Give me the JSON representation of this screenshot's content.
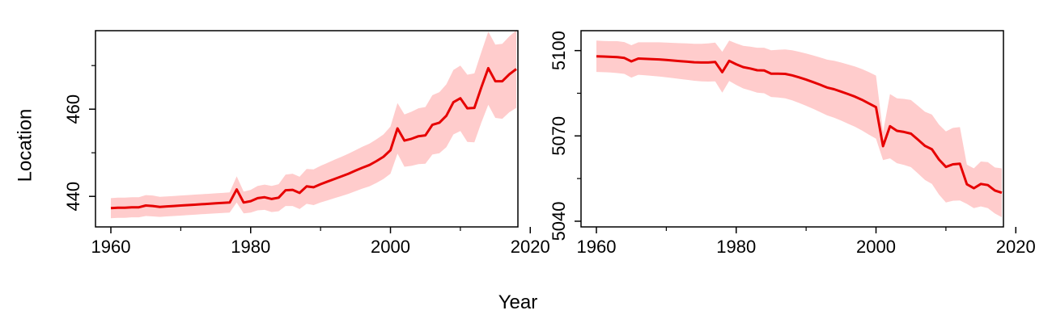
{
  "figure": {
    "ylabel": "Location",
    "xlabel": "Year",
    "colors": {
      "line": "#e60000",
      "band": "#ffcccc",
      "axis": "#000000"
    }
  },
  "chart_data": [
    {
      "type": "line",
      "xlim": [
        1960,
        2018
      ],
      "ylim": [
        433,
        478
      ],
      "xticks": [
        1960,
        1980,
        2000,
        2020
      ],
      "yticks": [
        440,
        460
      ],
      "xtick_labels": [
        "1960",
        "1980",
        "2000",
        "2020"
      ],
      "ytick_labels": [
        "440",
        "460"
      ],
      "minor_yticks": [
        450,
        470
      ],
      "series": [
        {
          "x": [
            1960,
            1961,
            1962,
            1963,
            1964,
            1965,
            1966,
            1967,
            1968,
            1969,
            1970,
            1971,
            1972,
            1973,
            1974,
            1975,
            1976,
            1977,
            1978,
            1979,
            1980,
            1981,
            1982,
            1983,
            1984,
            1985,
            1986,
            1987,
            1988,
            1989,
            1990,
            1991,
            1992,
            1993,
            1994,
            1995,
            1996,
            1997,
            1998,
            1999,
            2000,
            2001,
            2002,
            2003,
            2004,
            2005,
            2006,
            2007,
            2008,
            2009,
            2010,
            2011,
            2012,
            2013,
            2014,
            2015,
            2016,
            2017,
            2018
          ],
          "y": [
            437.3,
            437.4,
            437.4,
            437.5,
            437.5,
            437.9,
            437.8,
            437.6,
            437.7,
            437.8,
            437.9,
            438.0,
            438.1,
            438.2,
            438.3,
            438.4,
            438.5,
            438.6,
            441.6,
            438.6,
            438.9,
            439.6,
            439.8,
            439.4,
            439.7,
            441.4,
            441.5,
            440.8,
            442.3,
            442.1,
            442.8,
            443.4,
            444.0,
            444.6,
            445.2,
            445.9,
            446.6,
            447.2,
            448.1,
            449.1,
            450.6,
            455.6,
            452.8,
            453.2,
            453.8,
            454.0,
            456.4,
            456.9,
            458.5,
            461.6,
            462.5,
            460.2,
            460.3,
            465.0,
            469.4,
            466.4,
            466.4,
            468.0,
            469.2
          ],
          "lower": [
            435.0,
            435.1,
            435.1,
            435.2,
            435.2,
            435.5,
            435.4,
            435.3,
            435.4,
            435.5,
            435.6,
            435.7,
            435.8,
            435.9,
            436.0,
            436.1,
            436.2,
            436.3,
            438.6,
            436.1,
            436.3,
            436.8,
            436.9,
            436.4,
            436.6,
            437.8,
            437.8,
            437.1,
            438.3,
            438.0,
            438.6,
            439.1,
            439.6,
            440.1,
            440.6,
            441.2,
            441.8,
            442.3,
            443.1,
            444.0,
            445.2,
            449.8,
            446.8,
            447.0,
            447.4,
            447.5,
            449.6,
            449.9,
            451.3,
            454.2,
            455.0,
            452.5,
            452.4,
            456.9,
            461.0,
            458.0,
            457.8,
            459.3,
            460.3
          ],
          "upper": [
            439.6,
            439.7,
            439.7,
            439.8,
            439.8,
            440.3,
            440.2,
            439.9,
            440.0,
            440.1,
            440.2,
            440.3,
            440.4,
            440.5,
            440.6,
            440.7,
            440.8,
            440.9,
            444.6,
            441.1,
            441.5,
            442.4,
            442.7,
            442.4,
            442.8,
            445.0,
            445.2,
            444.5,
            446.3,
            446.2,
            447.0,
            447.7,
            448.4,
            449.1,
            449.8,
            450.6,
            451.4,
            452.1,
            453.1,
            454.2,
            456.0,
            461.4,
            458.8,
            459.4,
            460.2,
            460.5,
            463.2,
            463.9,
            465.7,
            469.0,
            470.0,
            467.9,
            468.2,
            473.1,
            477.8,
            474.8,
            475.0,
            476.7,
            478.1
          ]
        }
      ]
    },
    {
      "type": "line",
      "xlim": [
        1960,
        2018
      ],
      "ylim": [
        5038,
        5107
      ],
      "xticks": [
        1960,
        1980,
        2000,
        2020
      ],
      "yticks": [
        5040,
        5070,
        5100
      ],
      "xtick_labels": [
        "1960",
        "1980",
        "2000",
        "2020"
      ],
      "ytick_labels": [
        "5040",
        "5070",
        "5100"
      ],
      "minor_yticks": [
        5055,
        5085
      ],
      "series": [
        {
          "x": [
            1960,
            1961,
            1962,
            1963,
            1964,
            1965,
            1966,
            1967,
            1968,
            1969,
            1970,
            1971,
            1972,
            1973,
            1974,
            1975,
            1976,
            1977,
            1978,
            1979,
            1980,
            1981,
            1982,
            1983,
            1984,
            1985,
            1986,
            1987,
            1988,
            1989,
            1990,
            1991,
            1992,
            1993,
            1994,
            1995,
            1996,
            1997,
            1998,
            1999,
            2000,
            2001,
            2002,
            2003,
            2004,
            2005,
            2006,
            2007,
            2008,
            2009,
            2010,
            2011,
            2012,
            2013,
            2014,
            2015,
            2016,
            2017,
            2018
          ],
          "y": [
            5098.0,
            5097.9,
            5097.8,
            5097.7,
            5097.4,
            5096.2,
            5097.2,
            5097.1,
            5097.0,
            5096.9,
            5096.7,
            5096.5,
            5096.3,
            5096.1,
            5095.9,
            5095.8,
            5095.8,
            5096.0,
            5092.4,
            5096.4,
            5095.2,
            5094.2,
            5093.7,
            5093.1,
            5093.0,
            5091.9,
            5091.9,
            5091.8,
            5091.3,
            5090.6,
            5089.8,
            5088.9,
            5088.0,
            5087.0,
            5086.4,
            5085.6,
            5084.7,
            5083.8,
            5082.7,
            5081.4,
            5080.1,
            5066.4,
            5073.4,
            5071.8,
            5071.4,
            5070.8,
            5068.7,
            5066.5,
            5065.3,
            5061.7,
            5059.1,
            5060.0,
            5060.2,
            5053.0,
            5051.6,
            5053.1,
            5052.7,
            5050.8,
            5050.0
          ],
          "lower": [
            5092.5,
            5092.4,
            5092.3,
            5092.1,
            5091.8,
            5090.5,
            5091.5,
            5091.3,
            5091.1,
            5090.9,
            5090.6,
            5090.3,
            5090.0,
            5089.7,
            5089.4,
            5089.2,
            5089.1,
            5089.2,
            5085.2,
            5089.3,
            5087.9,
            5086.7,
            5086.0,
            5085.2,
            5085.0,
            5083.7,
            5083.5,
            5083.2,
            5082.5,
            5081.6,
            5080.6,
            5079.5,
            5078.4,
            5077.2,
            5076.4,
            5075.4,
            5074.3,
            5073.2,
            5071.9,
            5070.4,
            5069.0,
            5061.5,
            5062.1,
            5060.4,
            5059.8,
            5059.0,
            5056.8,
            5054.5,
            5053.1,
            5049.4,
            5046.6,
            5047.2,
            5047.3,
            5046.1,
            5044.6,
            5045.2,
            5044.6,
            5042.7,
            5041.4
          ],
          "upper": [
            5103.5,
            5103.4,
            5103.3,
            5103.3,
            5103.0,
            5101.9,
            5102.9,
            5102.9,
            5102.9,
            5102.9,
            5102.8,
            5102.7,
            5102.6,
            5102.5,
            5102.4,
            5102.4,
            5102.5,
            5102.8,
            5099.6,
            5103.5,
            5102.5,
            5101.7,
            5101.4,
            5101.0,
            5101.0,
            5100.1,
            5100.3,
            5100.4,
            5100.1,
            5099.6,
            5099.0,
            5098.3,
            5097.6,
            5096.8,
            5096.4,
            5095.8,
            5095.1,
            5094.4,
            5093.5,
            5092.4,
            5091.2,
            5071.3,
            5084.7,
            5083.2,
            5083.0,
            5082.6,
            5080.6,
            5078.5,
            5077.5,
            5074.0,
            5071.6,
            5072.8,
            5073.1,
            5059.9,
            5058.6,
            5061.0,
            5060.8,
            5058.9,
            5058.6
          ]
        }
      ]
    }
  ]
}
